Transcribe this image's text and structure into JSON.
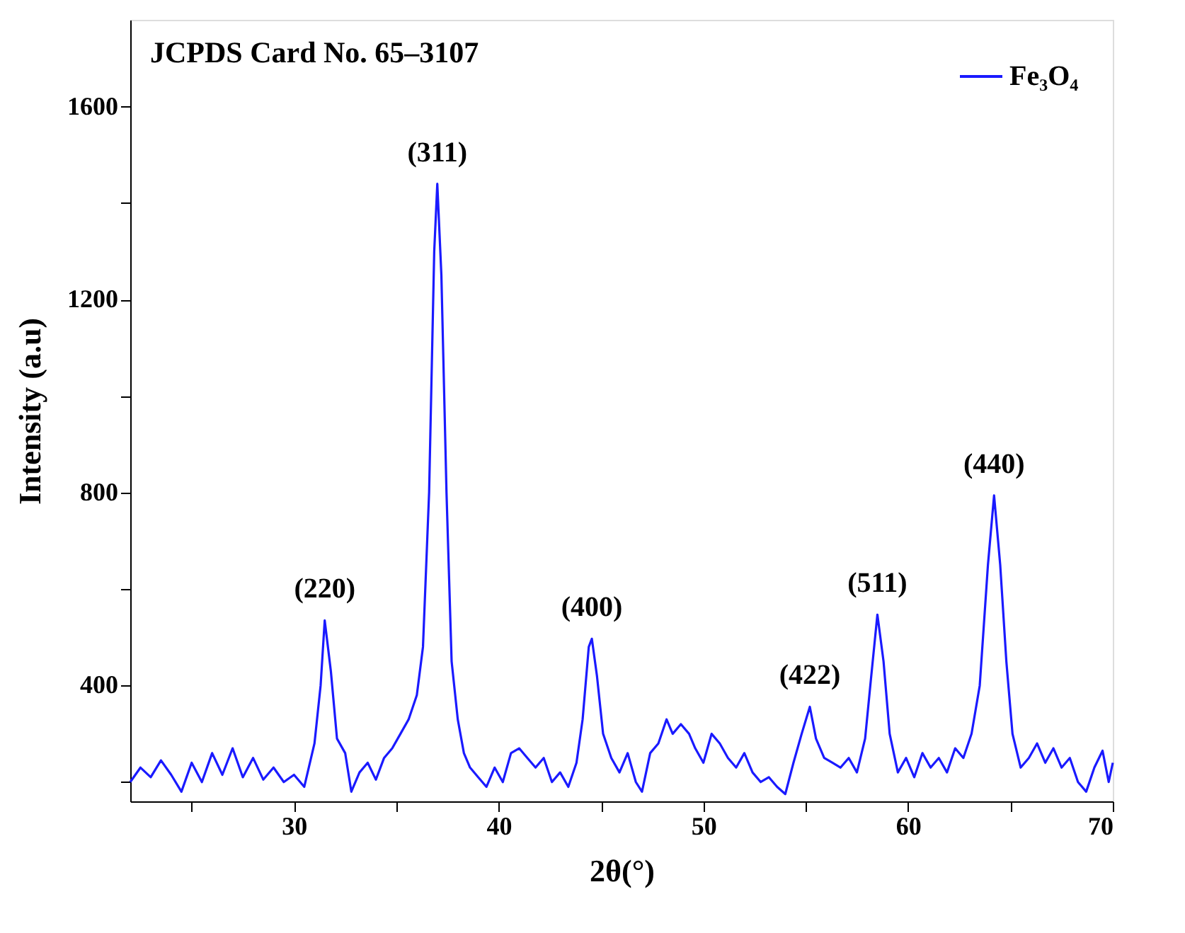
{
  "chart_data": {
    "type": "line",
    "xlabel": "2θ(°)",
    "ylabel": "Intensity (a.u)",
    "xlim": [
      22,
      70
    ],
    "ylim": [
      160,
      1780
    ],
    "xticks": [
      {
        "value": 25,
        "label": null
      },
      30,
      {
        "value": 35,
        "label": null
      },
      40,
      {
        "value": 45,
        "label": null
      },
      50,
      {
        "value": 55,
        "label": null
      },
      60,
      {
        "value": 65,
        "label": null
      },
      70
    ],
    "yticks": [
      {
        "value": 200,
        "label": null
      },
      400,
      {
        "value": 600,
        "label": null
      },
      800,
      {
        "value": 1000,
        "label": null
      },
      1200,
      {
        "value": 1400,
        "label": null
      },
      1600
    ],
    "grid": false,
    "legend": "top right",
    "line_style": "solid",
    "annotations": [
      "JCPDS Card No. 65–3107",
      {
        "text": "(220)",
        "x": 31.5,
        "y": 535
      },
      {
        "text": "(311)",
        "x": 37.0,
        "y": 1440
      },
      {
        "text": "(400)",
        "x": 44.55,
        "y": 497
      },
      {
        "text": "(422)",
        "x": 55.2,
        "y": 356
      },
      {
        "text": "(511)",
        "x": 58.5,
        "y": 547
      },
      {
        "text": "(440)",
        "x": 64.2,
        "y": 794
      }
    ],
    "series": [
      {
        "name": "Fe₃O₄",
        "color": "#1a1aff",
        "x": [
          22.0,
          22.5,
          23.0,
          23.5,
          24.0,
          24.5,
          25.0,
          25.5,
          26.0,
          26.5,
          27.0,
          27.5,
          28.0,
          28.5,
          29.0,
          29.5,
          30.0,
          30.5,
          31.0,
          31.3,
          31.5,
          31.8,
          32.1,
          32.5,
          32.8,
          33.2,
          33.6,
          34.0,
          34.4,
          34.8,
          35.2,
          35.6,
          36.0,
          36.3,
          36.6,
          36.85,
          37.0,
          37.2,
          37.45,
          37.7,
          38.0,
          38.3,
          38.6,
          39.0,
          39.4,
          39.8,
          40.2,
          40.6,
          41.0,
          41.4,
          41.8,
          42.2,
          42.6,
          43.0,
          43.4,
          43.8,
          44.1,
          44.4,
          44.55,
          44.8,
          45.1,
          45.5,
          45.9,
          46.3,
          46.7,
          47.0,
          47.4,
          47.8,
          48.2,
          48.5,
          48.9,
          49.3,
          49.6,
          50.0,
          50.4,
          50.8,
          51.2,
          51.6,
          52.0,
          52.4,
          52.8,
          53.2,
          53.6,
          54.0,
          54.4,
          54.8,
          55.2,
          55.5,
          55.9,
          56.3,
          56.7,
          57.1,
          57.5,
          57.9,
          58.2,
          58.5,
          58.8,
          59.1,
          59.5,
          59.9,
          60.3,
          60.7,
          61.1,
          61.5,
          61.9,
          62.3,
          62.7,
          63.1,
          63.5,
          63.9,
          64.2,
          64.5,
          64.8,
          65.1,
          65.5,
          65.9,
          66.3,
          66.7,
          67.1,
          67.5,
          67.9,
          68.3,
          68.7,
          69.1,
          69.5,
          69.8,
          70.0
        ],
        "values": [
          200,
          230,
          210,
          245,
          215,
          180,
          240,
          200,
          260,
          215,
          270,
          210,
          250,
          205,
          230,
          200,
          215,
          190,
          280,
          400,
          535,
          430,
          290,
          260,
          180,
          220,
          240,
          205,
          250,
          270,
          300,
          330,
          380,
          480,
          800,
          1300,
          1440,
          1250,
          800,
          450,
          330,
          260,
          230,
          210,
          190,
          230,
          200,
          260,
          270,
          250,
          230,
          250,
          200,
          220,
          190,
          240,
          330,
          480,
          497,
          420,
          300,
          250,
          220,
          260,
          200,
          180,
          260,
          280,
          330,
          300,
          320,
          300,
          270,
          240,
          300,
          280,
          250,
          230,
          260,
          220,
          200,
          210,
          190,
          175,
          240,
          300,
          356,
          290,
          250,
          240,
          230,
          250,
          220,
          290,
          420,
          547,
          450,
          300,
          220,
          250,
          210,
          260,
          230,
          250,
          220,
          270,
          250,
          300,
          400,
          650,
          794,
          650,
          450,
          300,
          230,
          250,
          280,
          240,
          270,
          230,
          250,
          200,
          180,
          230,
          265,
          200,
          240
        ]
      }
    ]
  }
}
